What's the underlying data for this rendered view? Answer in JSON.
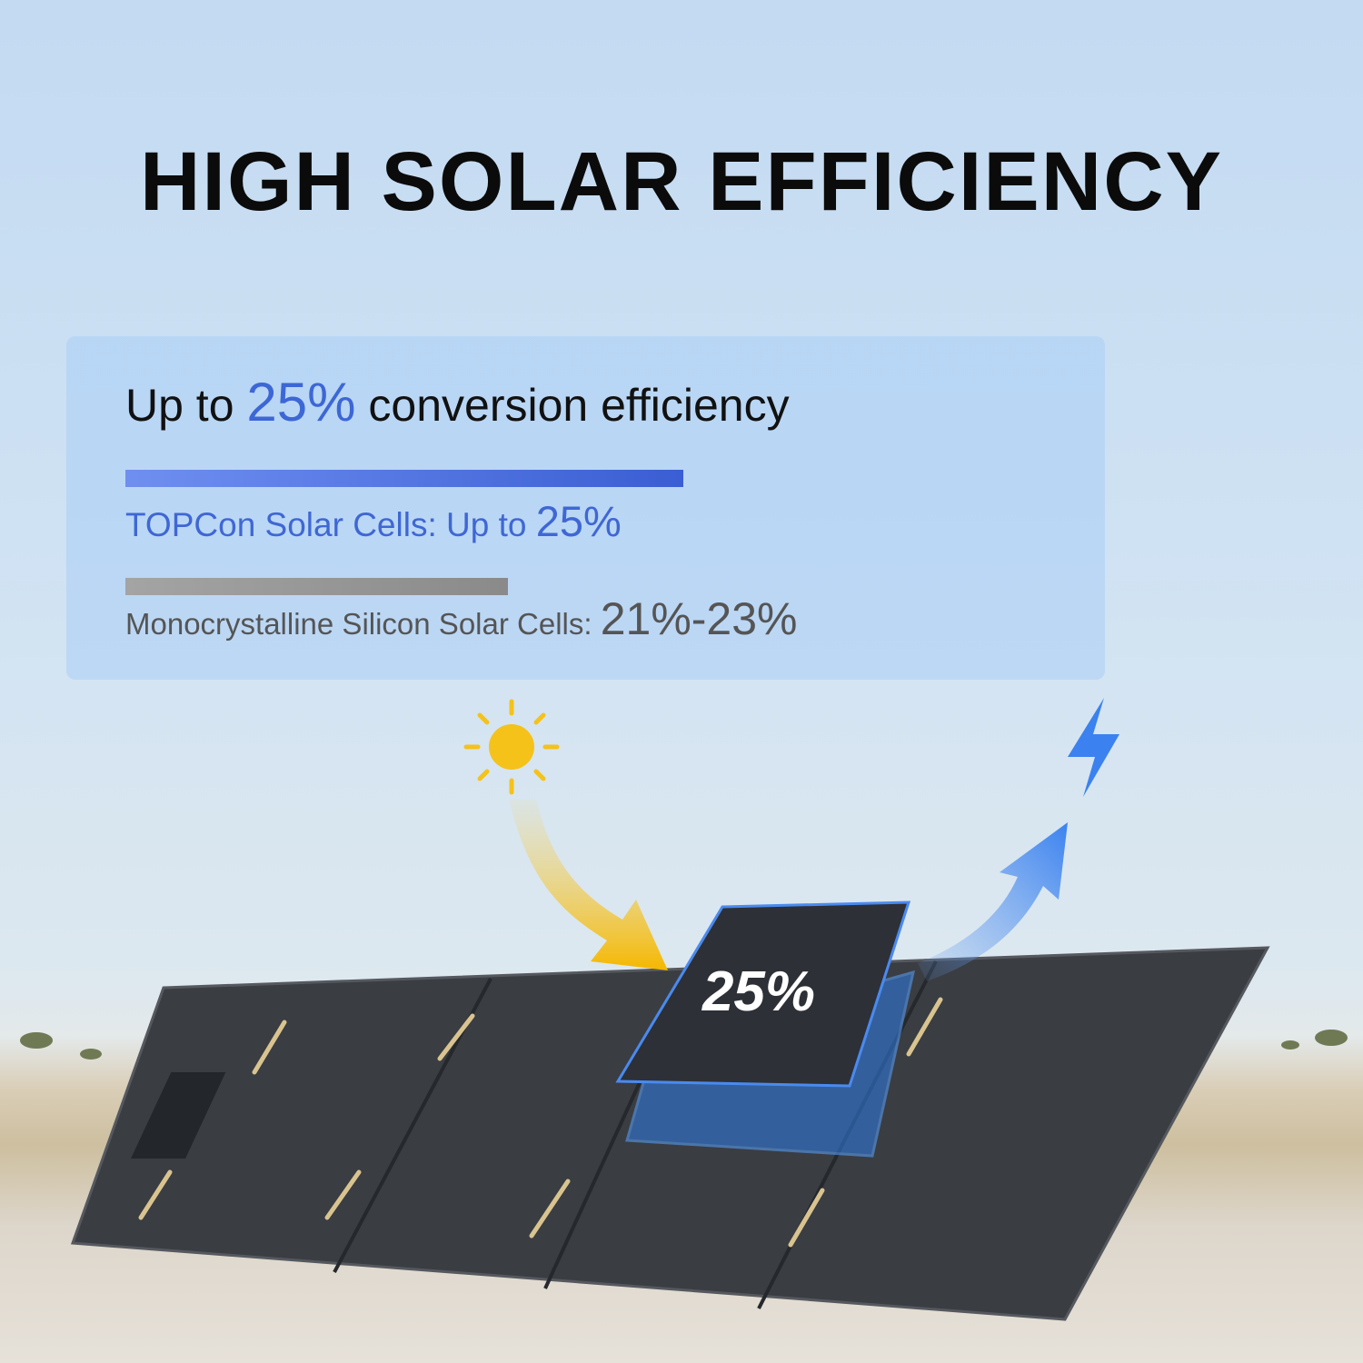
{
  "title": "HIGH SOLAR EFFICIENCY",
  "card": {
    "headline_pre": "Up to ",
    "headline_value": "25%",
    "headline_post": " conversion efficiency",
    "topcon": {
      "label": "TOPCon Solar Cells: Up to ",
      "value": "25%",
      "bar_percent": 25,
      "color": "#3f67d4"
    },
    "mono": {
      "label": "Monocrystalline Silicon Solar Cells: ",
      "value": "21%-23%",
      "bar_percent": 21,
      "color": "#555555"
    }
  },
  "panel_badge": "25%",
  "icons": [
    "sun-icon",
    "lightning-icon",
    "sunlight-arrow",
    "power-arrow"
  ]
}
